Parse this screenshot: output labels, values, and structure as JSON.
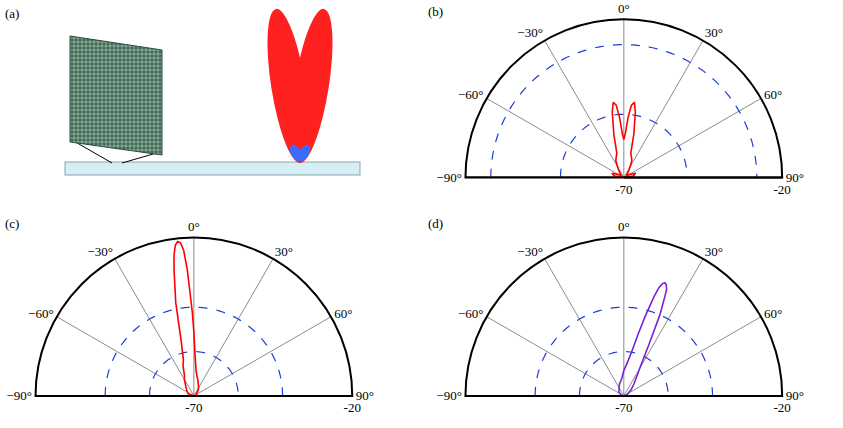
{
  "chart_data": [
    {
      "type": "illustration",
      "label": "(a)"
    },
    {
      "type": "polar",
      "label": "(b)",
      "color": "#ff0000",
      "grid": true,
      "x": [
        -90,
        -80,
        -70,
        -60,
        -50,
        -40,
        -30,
        -25,
        -20,
        -16,
        -13,
        -10,
        -8,
        -6,
        -4,
        -2,
        0,
        2,
        4,
        6,
        8,
        10,
        13,
        16,
        20,
        25,
        30,
        40,
        50,
        60,
        70,
        80,
        90
      ],
      "values": [
        -70,
        -67,
        -66,
        -68,
        -69,
        -68,
        -66,
        -64,
        -63,
        -62,
        -56,
        -49,
        -46,
        -47,
        -51,
        -56,
        -58,
        -56,
        -51,
        -47,
        -46,
        -49,
        -56,
        -62,
        -63,
        -64,
        -66,
        -68,
        -69,
        -68,
        -66,
        -67,
        -70
      ],
      "xlim": [
        -90,
        90
      ],
      "xticks": [
        {
          "value": -90,
          "label": "−90°"
        },
        {
          "value": -60,
          "label": "−60°"
        },
        {
          "value": -30,
          "label": "−30°"
        },
        {
          "value": 0,
          "label": "0°"
        },
        {
          "value": 30,
          "label": "30°"
        },
        {
          "value": 60,
          "label": "60°"
        },
        {
          "value": 90,
          "label": "90°"
        }
      ],
      "ylim": [
        -70,
        -20
      ],
      "yticks": [
        -70,
        -20
      ],
      "dashed_circles": [
        -50,
        -28
      ]
    },
    {
      "type": "polar",
      "label": "(c)",
      "color": "#ff0000",
      "grid": true,
      "x": [
        -90,
        -70,
        -50,
        -40,
        -30,
        -25,
        -20,
        -16,
        -13,
        -11,
        -9,
        -8,
        -7,
        -6,
        -5,
        -4,
        -3,
        -1,
        0,
        2,
        5,
        10,
        15,
        20,
        30,
        40,
        50,
        70,
        90
      ],
      "values": [
        -70,
        -68,
        -67,
        -66,
        -64,
        -63,
        -60,
        -58,
        -52,
        -40,
        -30,
        -25,
        -22,
        -21,
        -21.5,
        -24,
        -30,
        -44,
        -50,
        -58,
        -62,
        -64,
        -65,
        -66,
        -67,
        -68,
        -69,
        -69,
        -70
      ],
      "xlim": [
        -90,
        90
      ],
      "xticks": [
        {
          "value": -90,
          "label": "−90°"
        },
        {
          "value": -60,
          "label": "−60°"
        },
        {
          "value": -30,
          "label": "−30°"
        },
        {
          "value": 0,
          "label": "0°"
        },
        {
          "value": 30,
          "label": "30°"
        },
        {
          "value": 60,
          "label": "60°"
        },
        {
          "value": 90,
          "label": "90°"
        }
      ],
      "ylim": [
        -70,
        -20
      ],
      "yticks": [
        -70,
        -20
      ],
      "dashed_circles": [
        -56,
        -42
      ]
    },
    {
      "type": "polar",
      "label": "(d)",
      "color": "#7b22d8",
      "grid": true,
      "x": [
        -90,
        -70,
        -50,
        -30,
        -20,
        -10,
        -5,
        0,
        5,
        10,
        13,
        15,
        17,
        18,
        19,
        20,
        21,
        22,
        24,
        26,
        30,
        40,
        50,
        70,
        90
      ],
      "values": [
        -70,
        -69,
        -68,
        -67,
        -66,
        -65,
        -64,
        -62,
        -60,
        -56,
        -50,
        -44,
        -37,
        -34,
        -32.5,
        -32,
        -32.5,
        -34,
        -42,
        -52,
        -60,
        -65,
        -67,
        -69,
        -70
      ],
      "xlim": [
        -90,
        90
      ],
      "xticks": [
        {
          "value": -90,
          "label": "−90°"
        },
        {
          "value": -60,
          "label": "−60°"
        },
        {
          "value": -30,
          "label": "−30°"
        },
        {
          "value": 0,
          "label": "0°"
        },
        {
          "value": 30,
          "label": "30°"
        },
        {
          "value": 60,
          "label": "60°"
        },
        {
          "value": 90,
          "label": "90°"
        }
      ],
      "ylim": [
        -70,
        -20
      ],
      "yticks": [
        -70,
        -20
      ],
      "dashed_circles": [
        -56,
        -42
      ]
    }
  ]
}
